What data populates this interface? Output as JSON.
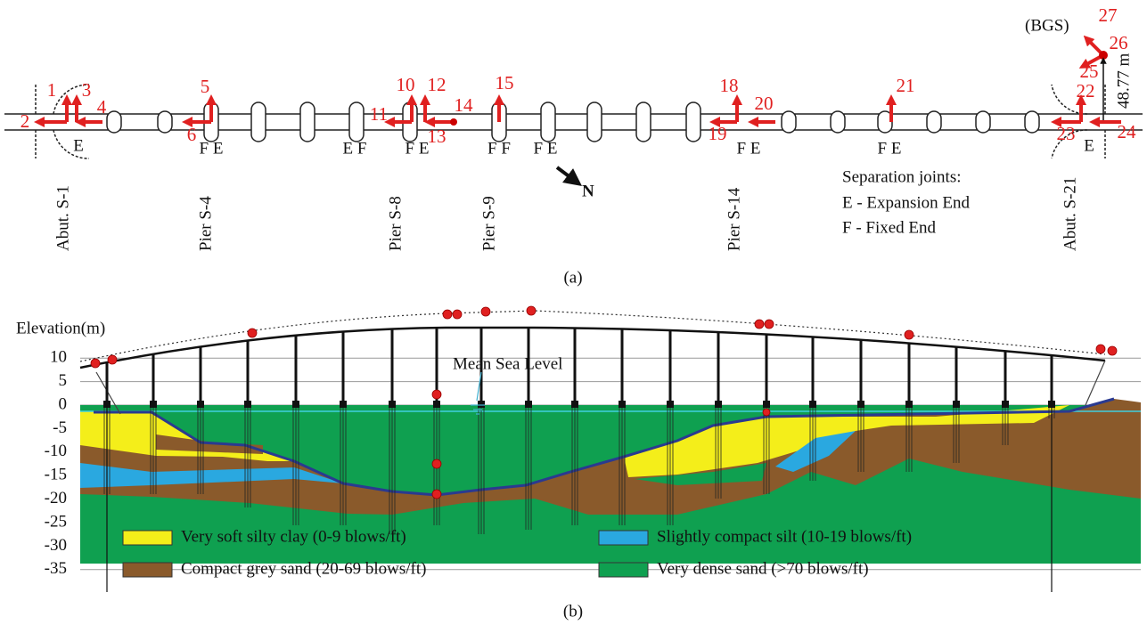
{
  "panel_a": {
    "sensors": [
      "1",
      "2",
      "3",
      "4",
      "5",
      "6",
      "10",
      "11",
      "12",
      "13",
      "14",
      "15",
      "18",
      "19",
      "20",
      "21",
      "22",
      "23",
      "24",
      "25",
      "26",
      "27"
    ],
    "supports": [
      "Abut. S-1",
      "Pier S-4",
      "Pier S-8",
      "Pier S-9",
      "Pier S-14",
      "Abut. S-21"
    ],
    "joint_labels": [
      "E",
      "F E",
      "E F",
      "F E",
      "F F",
      "F E",
      "F E",
      "F E",
      "E"
    ],
    "north": "N",
    "reference": "(BGS)",
    "height": "48.77 m",
    "joints_title": "Separation joints:",
    "joints_legend": [
      "E - Expansion End",
      "F - Fixed End"
    ],
    "caption": "(a)"
  },
  "panel_b": {
    "axis_title": "Elevation(m)",
    "ticks": [
      10,
      5,
      0,
      -5,
      -10,
      -15,
      -20,
      -25,
      -30,
      -35
    ],
    "mean_sea_level": "Mean Sea Level",
    "soil_legend": [
      "Very soft silty clay (0-9 blows/ft)",
      "Compact grey sand (20-69 blows/ft)",
      "Slightly compact silt (10-19 blows/ft)",
      "Very dense sand (>70 blows/ft)"
    ],
    "caption": "(b)"
  }
}
